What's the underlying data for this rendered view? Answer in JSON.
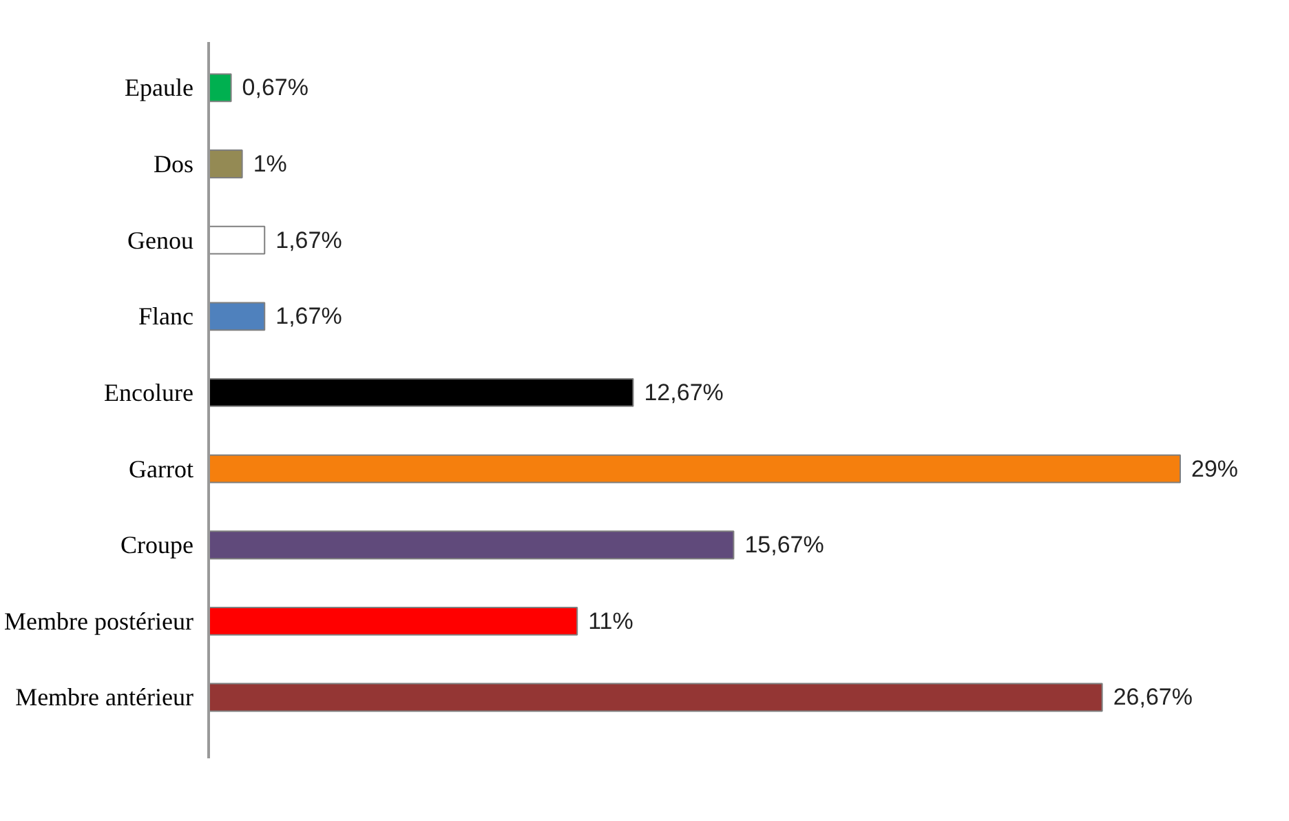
{
  "chart_data": {
    "type": "bar",
    "orientation": "horizontal",
    "categories": [
      "Epaule",
      "Dos",
      "Genou",
      "Flanc",
      "Encolure",
      "Garrot",
      "Croupe",
      "Membre postérieur",
      "Membre antérieur"
    ],
    "values": [
      0.67,
      1,
      1.67,
      1.67,
      12.67,
      29,
      15.67,
      11,
      26.67
    ],
    "colors": [
      "#00b050",
      "#948a54",
      "#ffffff",
      "#4f81bd",
      "#000000",
      "#f57f0d",
      "#604a7b",
      "#ff0000",
      "#943634"
    ],
    "value_labels": [
      "0,67%",
      "1%",
      "1,67%",
      "1,67%",
      "12,67%",
      "29%",
      "15,67%",
      "11%",
      "26,67%"
    ],
    "grid": false
  }
}
